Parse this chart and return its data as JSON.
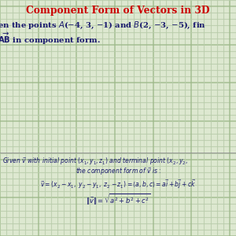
{
  "title": "Component Form of Vectors in 3D",
  "title_color": "#cc0000",
  "background_color": "#dde8d0",
  "grid_minor_color": "#b8ccaa",
  "grid_major_color": "#9db88a",
  "text_color": "#1a1a6e",
  "figsize": [
    3.0,
    3.0
  ],
  "dpi": 100
}
